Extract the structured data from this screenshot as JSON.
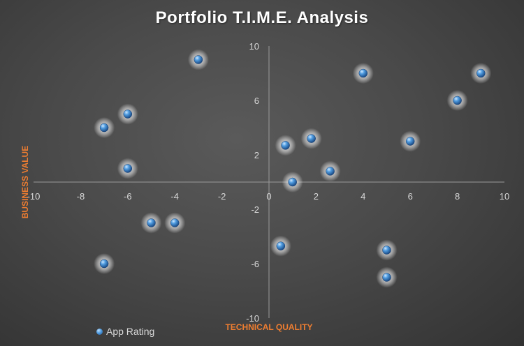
{
  "chart_data": {
    "type": "scatter",
    "title": "Portfolio T.I.M.E. Analysis",
    "xlabel": "TECHNICAL QUALITY",
    "ylabel": "BUSINESS VALUE",
    "xlim": [
      -10,
      10
    ],
    "ylim": [
      -10,
      10
    ],
    "x_ticks": [
      -10,
      -8,
      -6,
      -4,
      -2,
      0,
      2,
      4,
      6,
      8,
      10
    ],
    "y_ticks": [
      -10,
      -6,
      -2,
      2,
      6,
      10
    ],
    "x_tick_labels": [
      "-10",
      "-8",
      "-6",
      "-4",
      "-2",
      "0",
      "2",
      "4",
      "6",
      "8",
      "10"
    ],
    "y_tick_labels": [
      "-10",
      "-6",
      "-2",
      "2",
      "6",
      "10"
    ],
    "grid": false,
    "legend_position": "bottom-left",
    "series": [
      {
        "name": "App Rating",
        "color": "#4f9ce0",
        "points": [
          {
            "x": -3,
            "y": 9
          },
          {
            "x": 4,
            "y": 8
          },
          {
            "x": 9,
            "y": 8
          },
          {
            "x": 8,
            "y": 6
          },
          {
            "x": -6,
            "y": 5
          },
          {
            "x": -7,
            "y": 4
          },
          {
            "x": 1.8,
            "y": 3.2
          },
          {
            "x": 6,
            "y": 3
          },
          {
            "x": 0.7,
            "y": 2.7
          },
          {
            "x": -6,
            "y": 1
          },
          {
            "x": 2.6,
            "y": 0.8
          },
          {
            "x": 1,
            "y": 0
          },
          {
            "x": -5,
            "y": -3
          },
          {
            "x": -4,
            "y": -3
          },
          {
            "x": 0.5,
            "y": -4.7
          },
          {
            "x": 5,
            "y": -5
          },
          {
            "x": -7,
            "y": -6
          },
          {
            "x": 5,
            "y": -7
          }
        ]
      }
    ]
  },
  "legend": {
    "label": "App Rating"
  },
  "colors": {
    "axis_title": "#ed7d31",
    "marker": "#4f9ce0",
    "background": "#404040"
  }
}
